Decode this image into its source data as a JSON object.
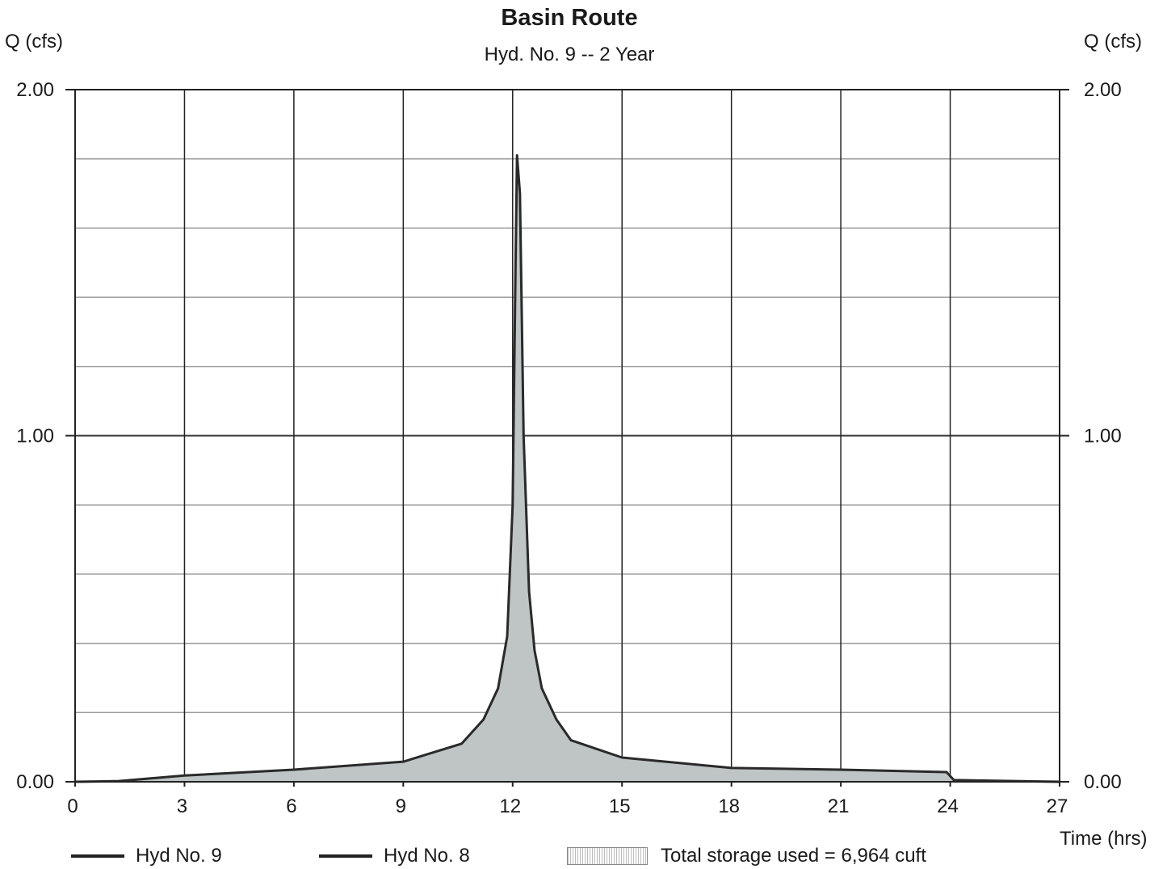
{
  "chart_data": {
    "type": "area",
    "title": "Basin Route",
    "subtitle": "Hyd. No. 9 -- 2 Year",
    "ylabel_left": "Q (cfs)",
    "ylabel_right": "Q (cfs)",
    "xlabel": "Time (hrs)",
    "xlim": [
      0,
      27
    ],
    "ylim": [
      0,
      2
    ],
    "x_ticks": [
      0,
      3,
      6,
      9,
      12,
      15,
      18,
      21,
      24,
      27
    ],
    "x_tick_labels": [
      "0",
      "3",
      "6",
      "9",
      "12",
      "15",
      "18",
      "21",
      "24",
      "27"
    ],
    "y_ticks": [
      0,
      1,
      2
    ],
    "y_tick_labels": [
      "0.00",
      "1.00",
      "2.00"
    ],
    "y_minor_step": 0.2,
    "grid": true,
    "legend_position": "bottom",
    "series": [
      {
        "name": "Hyd No. 9",
        "color": "#2a2a2a",
        "x": [
          0,
          1.2,
          3,
          6,
          9,
          10.6,
          11.2,
          11.6,
          11.85,
          12.0,
          12.08,
          12.12,
          12.2,
          12.3,
          12.45,
          12.6,
          12.8,
          13.2,
          13.6,
          15,
          18,
          21,
          23.9,
          24.1,
          27
        ],
        "y": [
          0,
          0.002,
          0.018,
          0.035,
          0.058,
          0.11,
          0.18,
          0.27,
          0.42,
          0.8,
          1.5,
          1.81,
          1.7,
          1.0,
          0.55,
          0.38,
          0.27,
          0.18,
          0.12,
          0.07,
          0.04,
          0.035,
          0.028,
          0.005,
          0.0
        ]
      },
      {
        "name": "Hyd No. 8",
        "color": "#2a2a2a",
        "x": [
          0,
          1.2,
          3,
          6,
          9,
          10.6,
          11.2,
          11.6,
          11.85,
          12.0,
          12.08,
          12.12,
          12.2,
          12.3,
          12.45,
          12.6,
          12.8,
          13.2,
          13.6,
          15,
          18,
          21,
          23.9,
          24.1,
          27
        ],
        "y": [
          0,
          0.002,
          0.018,
          0.035,
          0.058,
          0.11,
          0.18,
          0.27,
          0.42,
          0.8,
          1.5,
          1.81,
          1.7,
          1.0,
          0.55,
          0.38,
          0.27,
          0.18,
          0.12,
          0.07,
          0.04,
          0.035,
          0.028,
          0.005,
          0.0
        ]
      }
    ],
    "fill_color": "#bfc4c5",
    "storage_label": "Total storage used = 6,964 cuft"
  }
}
